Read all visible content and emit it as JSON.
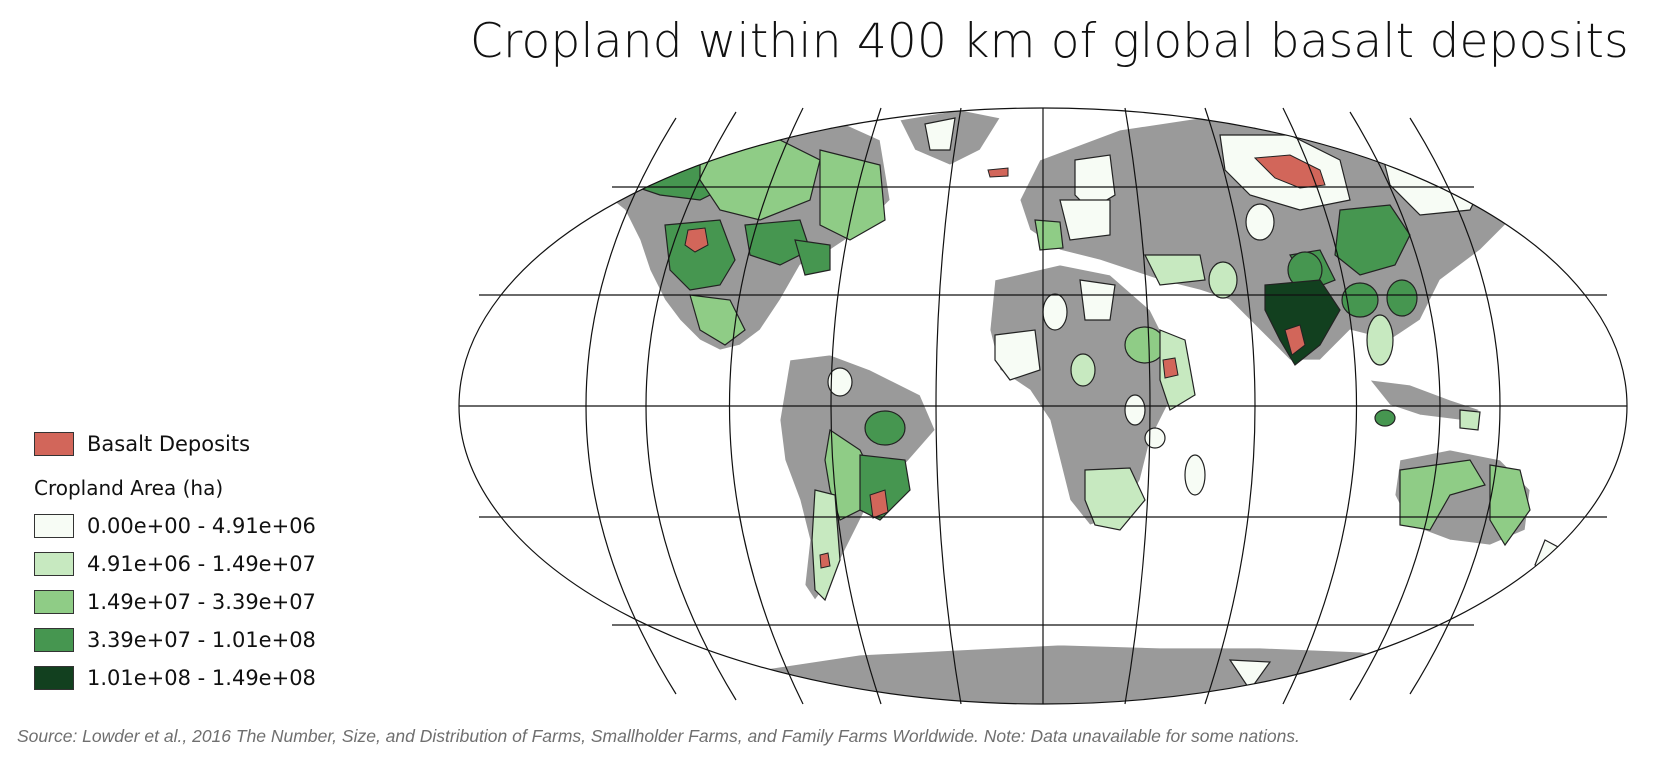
{
  "title": "Cropland within 400 km of global basalt deposits",
  "legend": {
    "basalt": {
      "label": "Basalt Deposits",
      "color": "#d2665a"
    },
    "heading": "Cropland Area (ha)",
    "classes": [
      {
        "label": "0.00e+00 - 4.91e+06",
        "color": "#f7fcf5"
      },
      {
        "label": "4.91e+06 - 1.49e+07",
        "color": "#c7e9c0"
      },
      {
        "label": "1.49e+07 - 3.39e+07",
        "color": "#8fcc86"
      },
      {
        "label": "3.39e+07 - 1.01e+08",
        "color": "#469650"
      },
      {
        "label": "1.01e+08 - 1.49e+08",
        "color": "#12401f"
      }
    ]
  },
  "colors": {
    "land_no_data": "#9a9a9a",
    "graticule": "#111111",
    "ocean": "#ffffff"
  },
  "source_note": "Source: Lowder et al., 2016 The Number, Size, and Distribution of Farms, Smallholder Farms, and Family Farms Worldwide. Note: Data unavailable for some nations."
}
